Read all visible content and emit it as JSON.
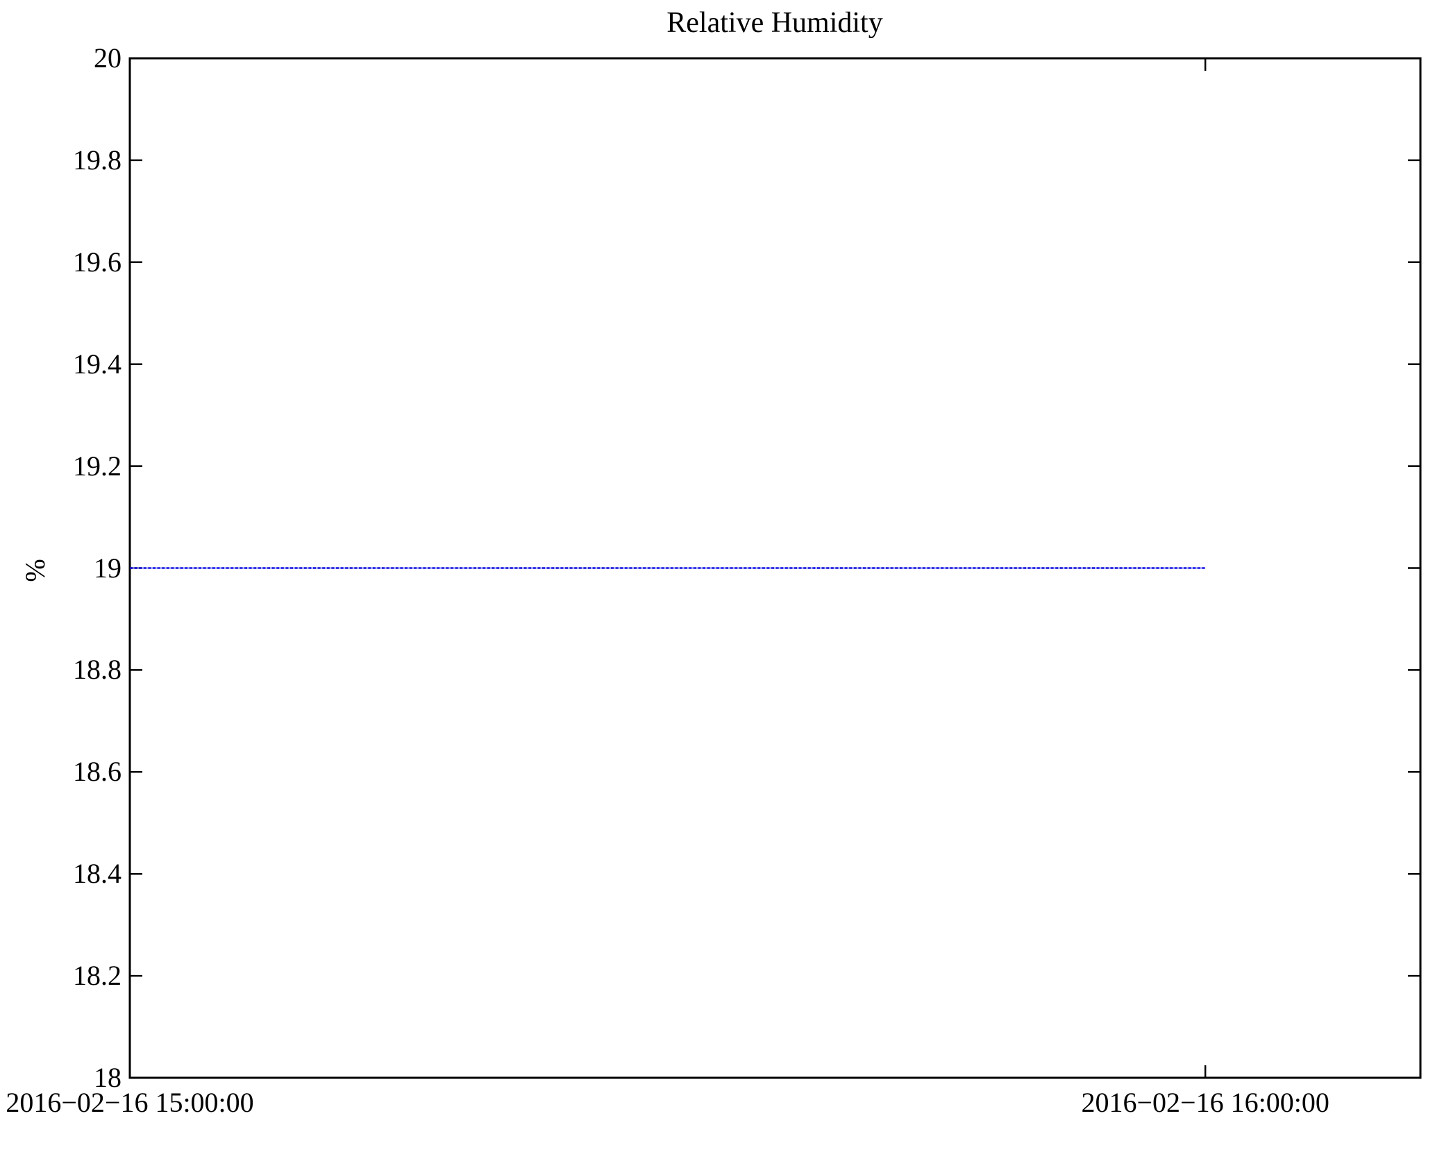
{
  "figure": {
    "background_color": "#ffffff",
    "axis_color": "#000000"
  },
  "chart_data": {
    "type": "line",
    "title": "Relative Humidity",
    "xlabel": "",
    "ylabel": "%",
    "grid": false,
    "legend": null,
    "series": [
      {
        "name": "relative-humidity",
        "color": "#0b0bdd",
        "halo_color": "#9090ff",
        "line_style": "dotted",
        "points": [
          {
            "time": "2016−02−16 15:00:00",
            "minutes": 0,
            "value": 19
          },
          {
            "time": "2016−02−16 16:00:00",
            "minutes": 60,
            "value": 19
          }
        ],
        "constant_value": 19
      }
    ],
    "x_axis": {
      "tick_labels": [
        "2016−02−16 15:00:00",
        "2016−02−16 16:00:00"
      ],
      "tick_positions_minutes": [
        0,
        60
      ],
      "range_minutes": [
        0,
        72
      ]
    },
    "y_axis": {
      "label": "%",
      "range": [
        18,
        20
      ],
      "tick_values": [
        18,
        18.2,
        18.4,
        18.6,
        18.8,
        19,
        19.2,
        19.4,
        19.6,
        19.8,
        20
      ],
      "tick_labels": [
        "18",
        "18.2",
        "18.4",
        "18.6",
        "18.8",
        "19",
        "19.2",
        "19.4",
        "19.6",
        "19.8",
        "20"
      ]
    }
  }
}
